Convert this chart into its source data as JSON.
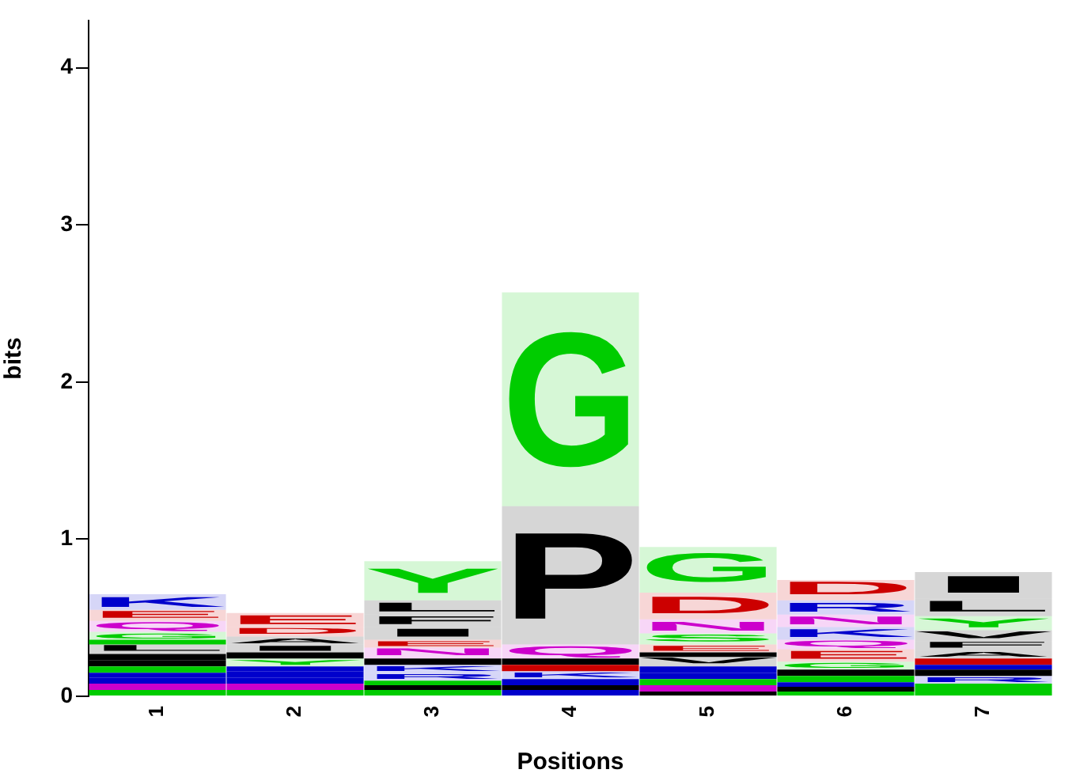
{
  "chart_data": {
    "type": "bar",
    "stacked": true,
    "categories": [
      "1",
      "2",
      "3",
      "4",
      "5",
      "6",
      "7"
    ],
    "xlabel": "Positions",
    "ylabel": "bits",
    "ylim": [
      0,
      4.3
    ],
    "yticks": [
      0,
      1,
      2,
      3,
      4
    ],
    "grid": false,
    "series": [
      {
        "values": [
          0.04,
          0.04,
          0.04,
          0.04,
          0.03,
          0.03,
          0.04
        ],
        "colors": [
          "#00cc00",
          "#00cc00",
          "#00cc00",
          "#0000cc",
          "#000000",
          "#00cc00",
          "#00cc00"
        ]
      },
      {
        "values": [
          0.04,
          0.04,
          0.03,
          0.03,
          0.04,
          0.03,
          0.04
        ],
        "colors": [
          "#cc00cc",
          "#cc00cc",
          "#000000",
          "#000000",
          "#cc00cc",
          "#000000",
          "#00cc00"
        ]
      },
      {
        "values": [
          0.04,
          0.04,
          0.03,
          0.04,
          0.04,
          0.03,
          0.05
        ],
        "value_labels": [
          null,
          null,
          null,
          null,
          null,
          null,
          "R"
        ],
        "colors": [
          "#0000cc",
          "#0000cc",
          "#00cc00",
          "#0000cc",
          "#00cc00",
          "#0000cc",
          "#0000cc"
        ]
      },
      {
        "values": [
          0.03,
          0.04,
          0.05,
          0.05,
          0.04,
          0.04,
          0.04
        ],
        "value_labels": [
          null,
          null,
          "R",
          "K",
          null,
          null,
          null
        ],
        "colors": [
          "#0000cc",
          "#0000cc",
          "#0000cc",
          "#0000cc",
          "#0000cc",
          "#00cc00",
          "#000000"
        ]
      },
      {
        "values": [
          0.04,
          0.03,
          0.05,
          0.04,
          0.04,
          0.04,
          0.03
        ],
        "value_labels": [
          null,
          null,
          "K",
          null,
          null,
          null,
          null
        ],
        "colors": [
          "#00cc00",
          "#0000cc",
          "#0000cc",
          "#cc0000",
          "#0000cc",
          "#000000",
          "#0000cc"
        ]
      },
      {
        "values": [
          0.04,
          0.05,
          0.04,
          0.04,
          0.06,
          0.05,
          0.04
        ],
        "value_labels": [
          null,
          "Y",
          null,
          null,
          "V",
          "G",
          null
        ],
        "colors": [
          "#000000",
          "#00cc00",
          "#000000",
          "#000000",
          "#000000",
          "#00cc00",
          "#cc0000"
        ]
      },
      {
        "values": [
          0.04,
          0.04,
          0.07,
          0.09,
          0.03,
          0.08,
          0.05
        ],
        "value_labels": [
          null,
          null,
          "N",
          "Q",
          null,
          "E",
          "A"
        ],
        "colors": [
          "#000000",
          "#000000",
          "#cc00cc",
          "#cc00cc",
          "#000000",
          "#cc0000",
          "#000000"
        ]
      },
      {
        "values": [
          0.06,
          0.05,
          0.05,
          0.88,
          0.05,
          0.06,
          0.06
        ],
        "value_labels": [
          "L",
          "I",
          "E",
          "P",
          "E",
          "Q",
          "F"
        ],
        "colors": [
          "#000000",
          "#000000",
          "#cc0000",
          "#000000",
          "#cc0000",
          "#cc00cc",
          "#000000"
        ]
      },
      {
        "values": [
          0.03,
          0.05,
          0.08,
          1.36,
          0.07,
          0.08,
          0.07
        ],
        "value_labels": [
          null,
          "A",
          "I",
          "G",
          "S",
          "K",
          "V"
        ],
        "colors": [
          "#00cc00",
          "#000000",
          "#000000",
          "#00cc00",
          "#00cc00",
          "#0000cc",
          "#000000"
        ]
      },
      {
        "values": [
          0.05,
          0.06,
          0.08,
          null,
          0.09,
          0.08,
          0.09
        ],
        "value_labels": [
          "G",
          "D",
          "F",
          null,
          "N",
          "N",
          "Y"
        ],
        "colors": [
          "#00cc00",
          "#cc0000",
          "#000000",
          null,
          "#cc00cc",
          "#cc00cc",
          "#00cc00"
        ]
      },
      {
        "values": [
          0.07,
          0.09,
          0.09,
          null,
          0.17,
          0.09,
          0.11
        ],
        "value_labels": [
          "Q",
          "E",
          "L",
          null,
          "D",
          "R",
          "L"
        ],
        "colors": [
          "#cc00cc",
          "#cc0000",
          "#000000",
          null,
          "#cc0000",
          "#0000cc",
          "#000000"
        ]
      },
      {
        "values": [
          0.07,
          null,
          0.25,
          null,
          0.29,
          0.13,
          0.17
        ],
        "value_labels": [
          "E",
          null,
          "Y",
          null,
          "G",
          "D",
          "I"
        ],
        "colors": [
          "#cc0000",
          null,
          "#00cc00",
          null,
          "#00cc00",
          "#cc0000",
          "#000000"
        ]
      },
      {
        "values": [
          0.1,
          null,
          null,
          null,
          null,
          null,
          null
        ],
        "value_labels": [
          "K",
          null,
          null,
          null,
          null,
          null,
          null
        ],
        "colors": [
          "#0000cc",
          null,
          null,
          null,
          null,
          null,
          null
        ]
      }
    ]
  }
}
